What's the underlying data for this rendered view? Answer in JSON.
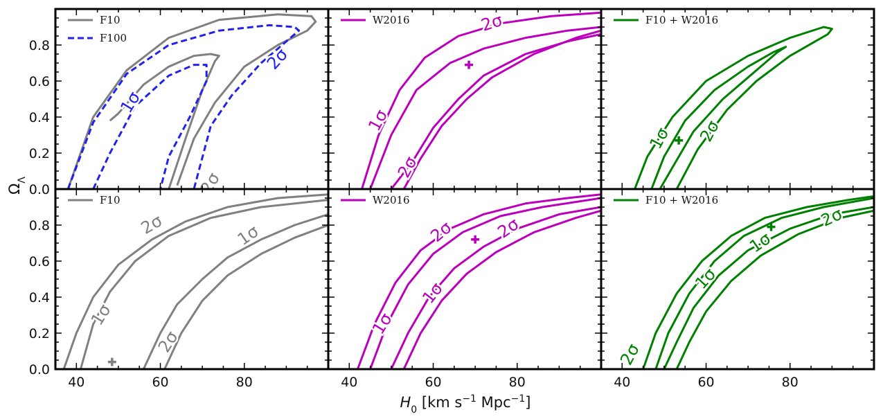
{
  "figure": {
    "xlabel": "H₀ [km s⁻¹ Mpc⁻¹]",
    "ylabel": "Ω_Λ",
    "xticks": [
      40,
      60,
      80
    ],
    "yticks": [
      "0.0",
      "0.2",
      "0.4",
      "0.6",
      "0.8"
    ],
    "xlim": [
      35,
      100
    ],
    "ylim": [
      0,
      1.0
    ]
  },
  "chart_data": [
    {
      "type": "line",
      "panel": "top-left",
      "legend": [
        "F10",
        "F100"
      ],
      "series": [
        {
          "name": "F10",
          "color": "#808080",
          "style": "solid",
          "contours": [
            {
              "label": "1σ",
              "x": [
                62,
                66,
                70,
                73,
                74,
                72,
                68,
                62,
                56,
                50,
                48
              ],
              "y": [
                0,
                0.28,
                0.55,
                0.71,
                0.74,
                0.75,
                0.74,
                0.68,
                0.58,
                0.42,
                0.38
              ]
            },
            {
              "label": "2σ",
              "x": [
                38,
                44,
                52,
                62,
                74,
                88,
                96,
                97,
                95,
                88,
                80,
                73,
                68,
                64
              ],
              "y": [
                0,
                0.4,
                0.66,
                0.84,
                0.94,
                0.97,
                0.96,
                0.93,
                0.88,
                0.8,
                0.68,
                0.48,
                0.28,
                0.02
              ]
            }
          ]
        },
        {
          "name": "F100",
          "color": "#2222ee",
          "style": "dashed",
          "contours": [
            {
              "label": "1σ",
              "x": [
                44,
                48,
                54,
                62,
                68,
                71,
                71,
                67,
                62,
                60
              ],
              "y": [
                0,
                0.2,
                0.46,
                0.63,
                0.69,
                0.69,
                0.6,
                0.4,
                0.18,
                0
              ]
            },
            {
              "label": "2σ",
              "x": [
                38,
                44,
                52,
                62,
                74,
                86,
                92,
                93,
                90,
                84,
                77,
                72,
                68
              ],
              "y": [
                0,
                0.37,
                0.64,
                0.8,
                0.88,
                0.91,
                0.9,
                0.88,
                0.82,
                0.7,
                0.52,
                0.35,
                0.0
              ]
            }
          ]
        }
      ],
      "contour_labels": [
        {
          "text": "1σ",
          "x": 53,
          "y": 0.48,
          "color": "#2222ee",
          "rotation": -58
        },
        {
          "text": "2σ",
          "x": 88,
          "y": 0.72,
          "color": "#2222ee",
          "rotation": -48
        },
        {
          "text": "2σ",
          "x": 72,
          "y": 0.03,
          "color": "#808080",
          "rotation": -60
        }
      ]
    },
    {
      "type": "line",
      "panel": "top-middle",
      "legend": [
        "W2016"
      ],
      "marker": {
        "x": 68.5,
        "y": 0.69
      },
      "series": [
        {
          "name": "W2016",
          "color": "#bb00bb",
          "style": "solid",
          "contours": [
            {
              "label": "1σ-upper",
              "x": [
                45,
                50,
                56,
                64,
                72,
                82,
                92,
                100
              ],
              "y": [
                0,
                0.3,
                0.55,
                0.7,
                0.78,
                0.84,
                0.88,
                0.9
              ]
            },
            {
              "label": "1σ-lower",
              "x": [
                50,
                55,
                60,
                66,
                72,
                82,
                92,
                100
              ],
              "y": [
                0,
                0.15,
                0.34,
                0.5,
                0.63,
                0.75,
                0.82,
                0.86
              ]
            },
            {
              "label": "2σ-upper",
              "x": [
                43,
                47,
                52,
                58,
                66,
                76,
                88,
                100
              ],
              "y": [
                0,
                0.3,
                0.55,
                0.73,
                0.85,
                0.92,
                0.96,
                0.98
              ]
            },
            {
              "label": "2σ-lower",
              "x": [
                53,
                57,
                62,
                68,
                74,
                84,
                94,
                100
              ],
              "y": [
                0,
                0.17,
                0.35,
                0.5,
                0.62,
                0.75,
                0.84,
                0.88
              ]
            }
          ]
        }
      ],
      "contour_labels": [
        {
          "text": "1σ",
          "x": 47,
          "y": 0.38,
          "color": "#bb00bb",
          "rotation": -62
        },
        {
          "text": "2σ",
          "x": 54,
          "y": 0.12,
          "color": "#bb00bb",
          "rotation": -62
        },
        {
          "text": "2σ",
          "x": 74,
          "y": 0.92,
          "color": "#bb00bb",
          "rotation": -18
        }
      ]
    },
    {
      "type": "line",
      "panel": "top-right",
      "legend": [
        "F10 + W2016"
      ],
      "marker": {
        "x": 53.5,
        "y": 0.27
      },
      "series": [
        {
          "name": "F10 + W2016",
          "color": "#008000",
          "style": "solid",
          "contours": [
            {
              "label": "1σ",
              "x": [
                47,
                50,
                55,
                62,
                70,
                76,
                79,
                77,
                74,
                70,
                64,
                57,
                52,
                49
              ],
              "y": [
                0,
                0.18,
                0.38,
                0.55,
                0.68,
                0.76,
                0.79,
                0.76,
                0.7,
                0.62,
                0.5,
                0.32,
                0.12,
                0
              ]
            },
            {
              "label": "2σ",
              "x": [
                43,
                46,
                52,
                60,
                70,
                80,
                88,
                90,
                89,
                86,
                80,
                72,
                65,
                58,
                53
              ],
              "y": [
                0,
                0.18,
                0.4,
                0.6,
                0.74,
                0.84,
                0.9,
                0.89,
                0.86,
                0.82,
                0.74,
                0.6,
                0.44,
                0.22,
                0
              ]
            }
          ]
        }
      ],
      "contour_labels": [
        {
          "text": "1σ",
          "x": 49,
          "y": 0.28,
          "color": "#008000",
          "rotation": -62
        },
        {
          "text": "2σ",
          "x": 61,
          "y": 0.32,
          "color": "#008000",
          "rotation": -62
        }
      ]
    },
    {
      "type": "line",
      "panel": "bottom-left",
      "legend": [
        "F10"
      ],
      "marker": {
        "x": 48.5,
        "y": 0.04
      },
      "series": [
        {
          "name": "F10",
          "color": "#808080",
          "style": "solid",
          "contours": [
            {
              "label": "2σ-upper",
              "x": [
                37,
                40,
                44,
                50,
                58,
                66,
                76,
                88,
                100
              ],
              "y": [
                0,
                0.2,
                0.4,
                0.58,
                0.72,
                0.82,
                0.9,
                0.95,
                0.97
              ]
            },
            {
              "label": "1σ-upper",
              "x": [
                41,
                44,
                48,
                54,
                62,
                72,
                84,
                100
              ],
              "y": [
                0,
                0.25,
                0.43,
                0.6,
                0.74,
                0.84,
                0.9,
                0.94
              ]
            },
            {
              "label": "1σ-lower",
              "x": [
                56,
                60,
                64,
                70,
                76,
                84,
                92,
                100
              ],
              "y": [
                0,
                0.2,
                0.36,
                0.5,
                0.62,
                0.72,
                0.8,
                0.86
              ]
            },
            {
              "label": "2σ-lower",
              "x": [
                61,
                65,
                70,
                76,
                84,
                92,
                100
              ],
              "y": [
                0,
                0.2,
                0.38,
                0.52,
                0.64,
                0.73,
                0.8
              ]
            }
          ]
        }
      ],
      "contour_labels": [
        {
          "text": "2σ",
          "x": 58,
          "y": 0.8,
          "color": "#808080",
          "rotation": -30
        },
        {
          "text": "1σ",
          "x": 81,
          "y": 0.74,
          "color": "#808080",
          "rotation": -35
        },
        {
          "text": "1σ",
          "x": 46,
          "y": 0.3,
          "color": "#808080",
          "rotation": -58
        },
        {
          "text": "2σ",
          "x": 62,
          "y": 0.15,
          "color": "#808080",
          "rotation": -58
        }
      ]
    },
    {
      "type": "line",
      "panel": "bottom-middle",
      "legend": [
        "W2016"
      ],
      "marker": {
        "x": 70,
        "y": 0.72
      },
      "series": [
        {
          "name": "W2016",
          "color": "#bb00bb",
          "style": "solid",
          "contours": [
            {
              "label": "2σ-upper",
              "x": [
                42,
                46,
                51,
                57,
                64,
                72,
                82,
                92,
                100
              ],
              "y": [
                0,
                0.25,
                0.48,
                0.66,
                0.78,
                0.86,
                0.92,
                0.95,
                0.97
              ]
            },
            {
              "label": "1σ-upper",
              "x": [
                45,
                49,
                54,
                60,
                67,
                76,
                86,
                100
              ],
              "y": [
                0,
                0.25,
                0.47,
                0.64,
                0.76,
                0.85,
                0.9,
                0.95
              ]
            },
            {
              "label": "1σ-lower",
              "x": [
                50,
                54,
                59,
                65,
                72,
                80,
                90,
                100
              ],
              "y": [
                0,
                0.2,
                0.4,
                0.56,
                0.68,
                0.78,
                0.86,
                0.9
              ]
            },
            {
              "label": "2σ-lower",
              "x": [
                53,
                57,
                62,
                68,
                75,
                84,
                94,
                100
              ],
              "y": [
                0,
                0.2,
                0.38,
                0.53,
                0.65,
                0.76,
                0.84,
                0.88
              ]
            }
          ]
        }
      ],
      "contour_labels": [
        {
          "text": "2σ",
          "x": 62,
          "y": 0.76,
          "color": "#bb00bb",
          "rotation": -40
        },
        {
          "text": "2σ",
          "x": 78,
          "y": 0.78,
          "color": "#bb00bb",
          "rotation": -35
        },
        {
          "text": "1σ",
          "x": 48,
          "y": 0.25,
          "color": "#bb00bb",
          "rotation": -58
        },
        {
          "text": "1σ",
          "x": 60,
          "y": 0.42,
          "color": "#bb00bb",
          "rotation": -52
        }
      ]
    },
    {
      "type": "line",
      "panel": "bottom-right",
      "legend": [
        "F10 + W2016"
      ],
      "marker": {
        "x": 75.5,
        "y": 0.79
      },
      "series": [
        {
          "name": "F10 + W2016",
          "color": "#008000",
          "style": "solid",
          "contours": [
            {
              "label": "2σ-upper",
              "x": [
                45,
                48,
                53,
                59,
                66,
                74,
                84,
                94,
                100
              ],
              "y": [
                0,
                0.2,
                0.42,
                0.6,
                0.74,
                0.84,
                0.9,
                0.94,
                0.96
              ]
            },
            {
              "label": "1σ-upper",
              "x": [
                48,
                51,
                56,
                62,
                69,
                78,
                88,
                100
              ],
              "y": [
                0,
                0.2,
                0.42,
                0.6,
                0.74,
                0.84,
                0.9,
                0.95
              ]
            },
            {
              "label": "1σ-lower",
              "x": [
                50,
                53,
                57,
                63,
                70,
                80,
                90,
                100
              ],
              "y": [
                0,
                0.15,
                0.34,
                0.52,
                0.66,
                0.78,
                0.86,
                0.9
              ]
            },
            {
              "label": "2σ-lower",
              "x": [
                53,
                56,
                60,
                66,
                73,
                82,
                92,
                100
              ],
              "y": [
                0,
                0.15,
                0.32,
                0.49,
                0.63,
                0.75,
                0.84,
                0.88
              ]
            }
          ]
        }
      ],
      "contour_labels": [
        {
          "text": "1σ",
          "x": 60,
          "y": 0.5,
          "color": "#008000",
          "rotation": -48
        },
        {
          "text": "1σ",
          "x": 73,
          "y": 0.7,
          "color": "#008000",
          "rotation": -35
        },
        {
          "text": "2σ",
          "x": 42,
          "y": 0.08,
          "color": "#008000",
          "rotation": -62
        },
        {
          "text": "2σ",
          "x": 90,
          "y": 0.84,
          "color": "#008000",
          "rotation": -25
        }
      ]
    }
  ]
}
